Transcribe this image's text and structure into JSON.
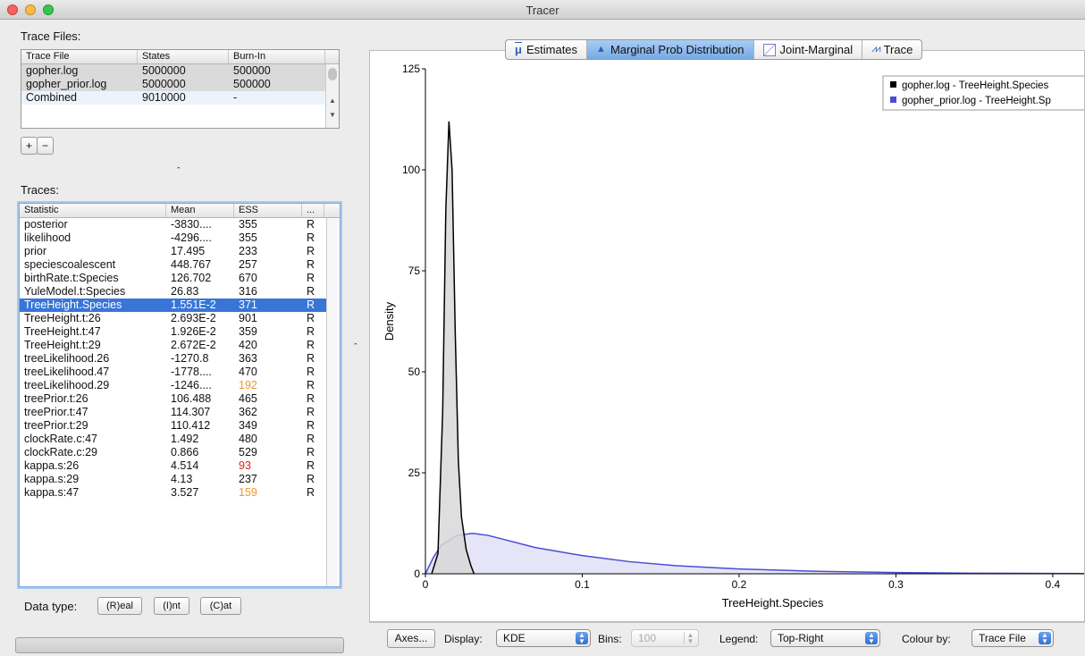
{
  "window": {
    "title": "Tracer"
  },
  "trace_files": {
    "label": "Trace Files:",
    "columns": [
      "Trace File",
      "States",
      "Burn-In"
    ],
    "rows": [
      [
        "gopher.log",
        "5000000",
        "500000"
      ],
      [
        "gopher_prior.log",
        "5000000",
        "500000"
      ],
      [
        "Combined",
        "9010000",
        "-"
      ]
    ],
    "add_label": "+",
    "remove_label": "−"
  },
  "traces": {
    "label": "Traces:",
    "columns": [
      "Statistic",
      "Mean",
      "ESS",
      "..."
    ],
    "rows": [
      [
        "posterior",
        "-3830....",
        "355",
        "R"
      ],
      [
        "likelihood",
        "-4296....",
        "355",
        "R"
      ],
      [
        "prior",
        "17.495",
        "233",
        "R"
      ],
      [
        "speciescoalescent",
        "448.767",
        "257",
        "R"
      ],
      [
        "birthRate.t:Species",
        "126.702",
        "670",
        "R"
      ],
      [
        "YuleModel.t:Species",
        "26.83",
        "316",
        "R"
      ],
      [
        "TreeHeight.Species",
        "1.551E-2",
        "371",
        "R"
      ],
      [
        "TreeHeight.t:26",
        "2.693E-2",
        "901",
        "R"
      ],
      [
        "TreeHeight.t:47",
        "1.926E-2",
        "359",
        "R"
      ],
      [
        "TreeHeight.t:29",
        "2.672E-2",
        "420",
        "R"
      ],
      [
        "treeLikelihood.26",
        "-1270.8",
        "363",
        "R"
      ],
      [
        "treeLikelihood.47",
        "-1778....",
        "470",
        "R"
      ],
      [
        "treeLikelihood.29",
        "-1246....",
        "192",
        "R"
      ],
      [
        "treePrior.t:26",
        "106.488",
        "465",
        "R"
      ],
      [
        "treePrior.t:47",
        "114.307",
        "362",
        "R"
      ],
      [
        "treePrior.t:29",
        "110.412",
        "349",
        "R"
      ],
      [
        "clockRate.c:47",
        "1.492",
        "480",
        "R"
      ],
      [
        "clockRate.c:29",
        "0.866",
        "529",
        "R"
      ],
      [
        "kappa.s:26",
        "4.514",
        "93",
        "R"
      ],
      [
        "kappa.s:29",
        "4.13",
        "237",
        "R"
      ],
      [
        "kappa.s:47",
        "3.527",
        "159",
        "R"
      ]
    ],
    "selected_index": 6,
    "ess_colors": {
      "192": "#e89a2e",
      "93": "#e02020",
      "159": "#e89a2e"
    }
  },
  "data_type": {
    "label": "Data type:",
    "buttons": [
      "(R)eal",
      "(I)nt",
      "(C)at"
    ]
  },
  "tabs": [
    {
      "label": "Estimates",
      "icon": "mu-icon"
    },
    {
      "label": "Marginal Prob Distribution",
      "icon": "distribution-icon",
      "active": true
    },
    {
      "label": "Joint-Marginal",
      "icon": "scatter-icon"
    },
    {
      "label": "Trace",
      "icon": "trace-icon"
    }
  ],
  "bottom_bar": {
    "axes_label": "Axes...",
    "display_label": "Display:",
    "display_value": "KDE",
    "bins_label": "Bins:",
    "bins_value": "100",
    "legend_label": "Legend:",
    "legend_value": "Top-Right",
    "colour_label": "Colour by:",
    "colour_value": "Trace File"
  },
  "chart_data": {
    "type": "area",
    "xlabel": "TreeHeight.Species",
    "ylabel": "Density",
    "xlim": [
      0,
      0.42
    ],
    "ylim": [
      0,
      125
    ],
    "xticks": [
      "0",
      "0.1",
      "0.2",
      "0.3",
      "0.4"
    ],
    "yticks": [
      "0",
      "25",
      "50",
      "75",
      "100",
      "125"
    ],
    "legend_position": "top-right",
    "series": [
      {
        "name": "gopher.log - TreeHeight.Species",
        "color": "#000000",
        "fill": "#d8d8d8",
        "x": [
          0.004,
          0.008,
          0.011,
          0.013,
          0.015,
          0.017,
          0.019,
          0.021,
          0.023,
          0.026,
          0.029,
          0.031
        ],
        "y": [
          0,
          5,
          40,
          90,
          112,
          100,
          60,
          28,
          14,
          6,
          2,
          0
        ]
      },
      {
        "name": "gopher_prior.log - TreeHeight.Sp",
        "color": "#4b4bd6",
        "fill": "#e0e0f6",
        "x": [
          0.0,
          0.005,
          0.01,
          0.02,
          0.03,
          0.04,
          0.05,
          0.07,
          0.1,
          0.13,
          0.16,
          0.2,
          0.25,
          0.3,
          0.35,
          0.42
        ],
        "y": [
          0,
          4,
          7,
          9.5,
          10,
          9.5,
          8.5,
          6.5,
          4.5,
          3,
          2,
          1.2,
          0.6,
          0.3,
          0.15,
          0.05
        ]
      }
    ]
  }
}
